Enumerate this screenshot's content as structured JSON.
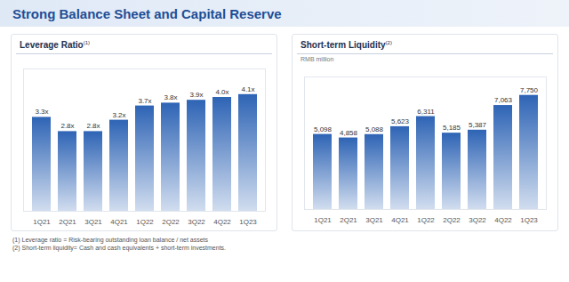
{
  "title": "Strong Balance Sheet and Capital Reserve",
  "notes": [
    "(1) Leverage ratio = Risk-bearing outstanding loan balance / net assets",
    "(2) Short-term liquidity= Cash and cash equivalents + short-term investments."
  ],
  "chart_data": [
    {
      "type": "bar",
      "title": "Leverage Ratio",
      "title_note": "(1)",
      "categories": [
        "1Q21",
        "2Q21",
        "3Q21",
        "4Q21",
        "1Q22",
        "2Q22",
        "3Q22",
        "4Q22",
        "1Q23"
      ],
      "values": [
        3.3,
        2.8,
        2.8,
        3.2,
        3.7,
        3.8,
        3.9,
        4.0,
        4.1
      ],
      "value_labels": [
        "3.3x",
        "2.8x",
        "2.8x",
        "3.2x",
        "3.7x",
        "3.8x",
        "3.9x",
        "4.0x",
        "4.1x"
      ],
      "color": "#2e64b5",
      "ylim": [
        0,
        5
      ],
      "grid": false,
      "data_labels": true,
      "tick_labels": "x"
    },
    {
      "type": "bar",
      "title": "Short-term Liquidity",
      "title_note": "(2)",
      "subtitle": "RMB million",
      "categories": [
        "1Q21",
        "2Q21",
        "3Q21",
        "4Q21",
        "1Q22",
        "2Q22",
        "3Q22",
        "4Q22",
        "1Q23"
      ],
      "values": [
        5098,
        4858,
        5088,
        5623,
        6311,
        5185,
        5387,
        7063,
        7750
      ],
      "value_labels": [
        "5,098",
        "4,858",
        "5,088",
        "5,623",
        "6,311",
        "5,185",
        "5,387",
        "7,063",
        "7,750"
      ],
      "color": "#2e64b5",
      "ylim": [
        0,
        9000
      ],
      "grid": false,
      "data_labels": true,
      "tick_labels": "x"
    }
  ]
}
